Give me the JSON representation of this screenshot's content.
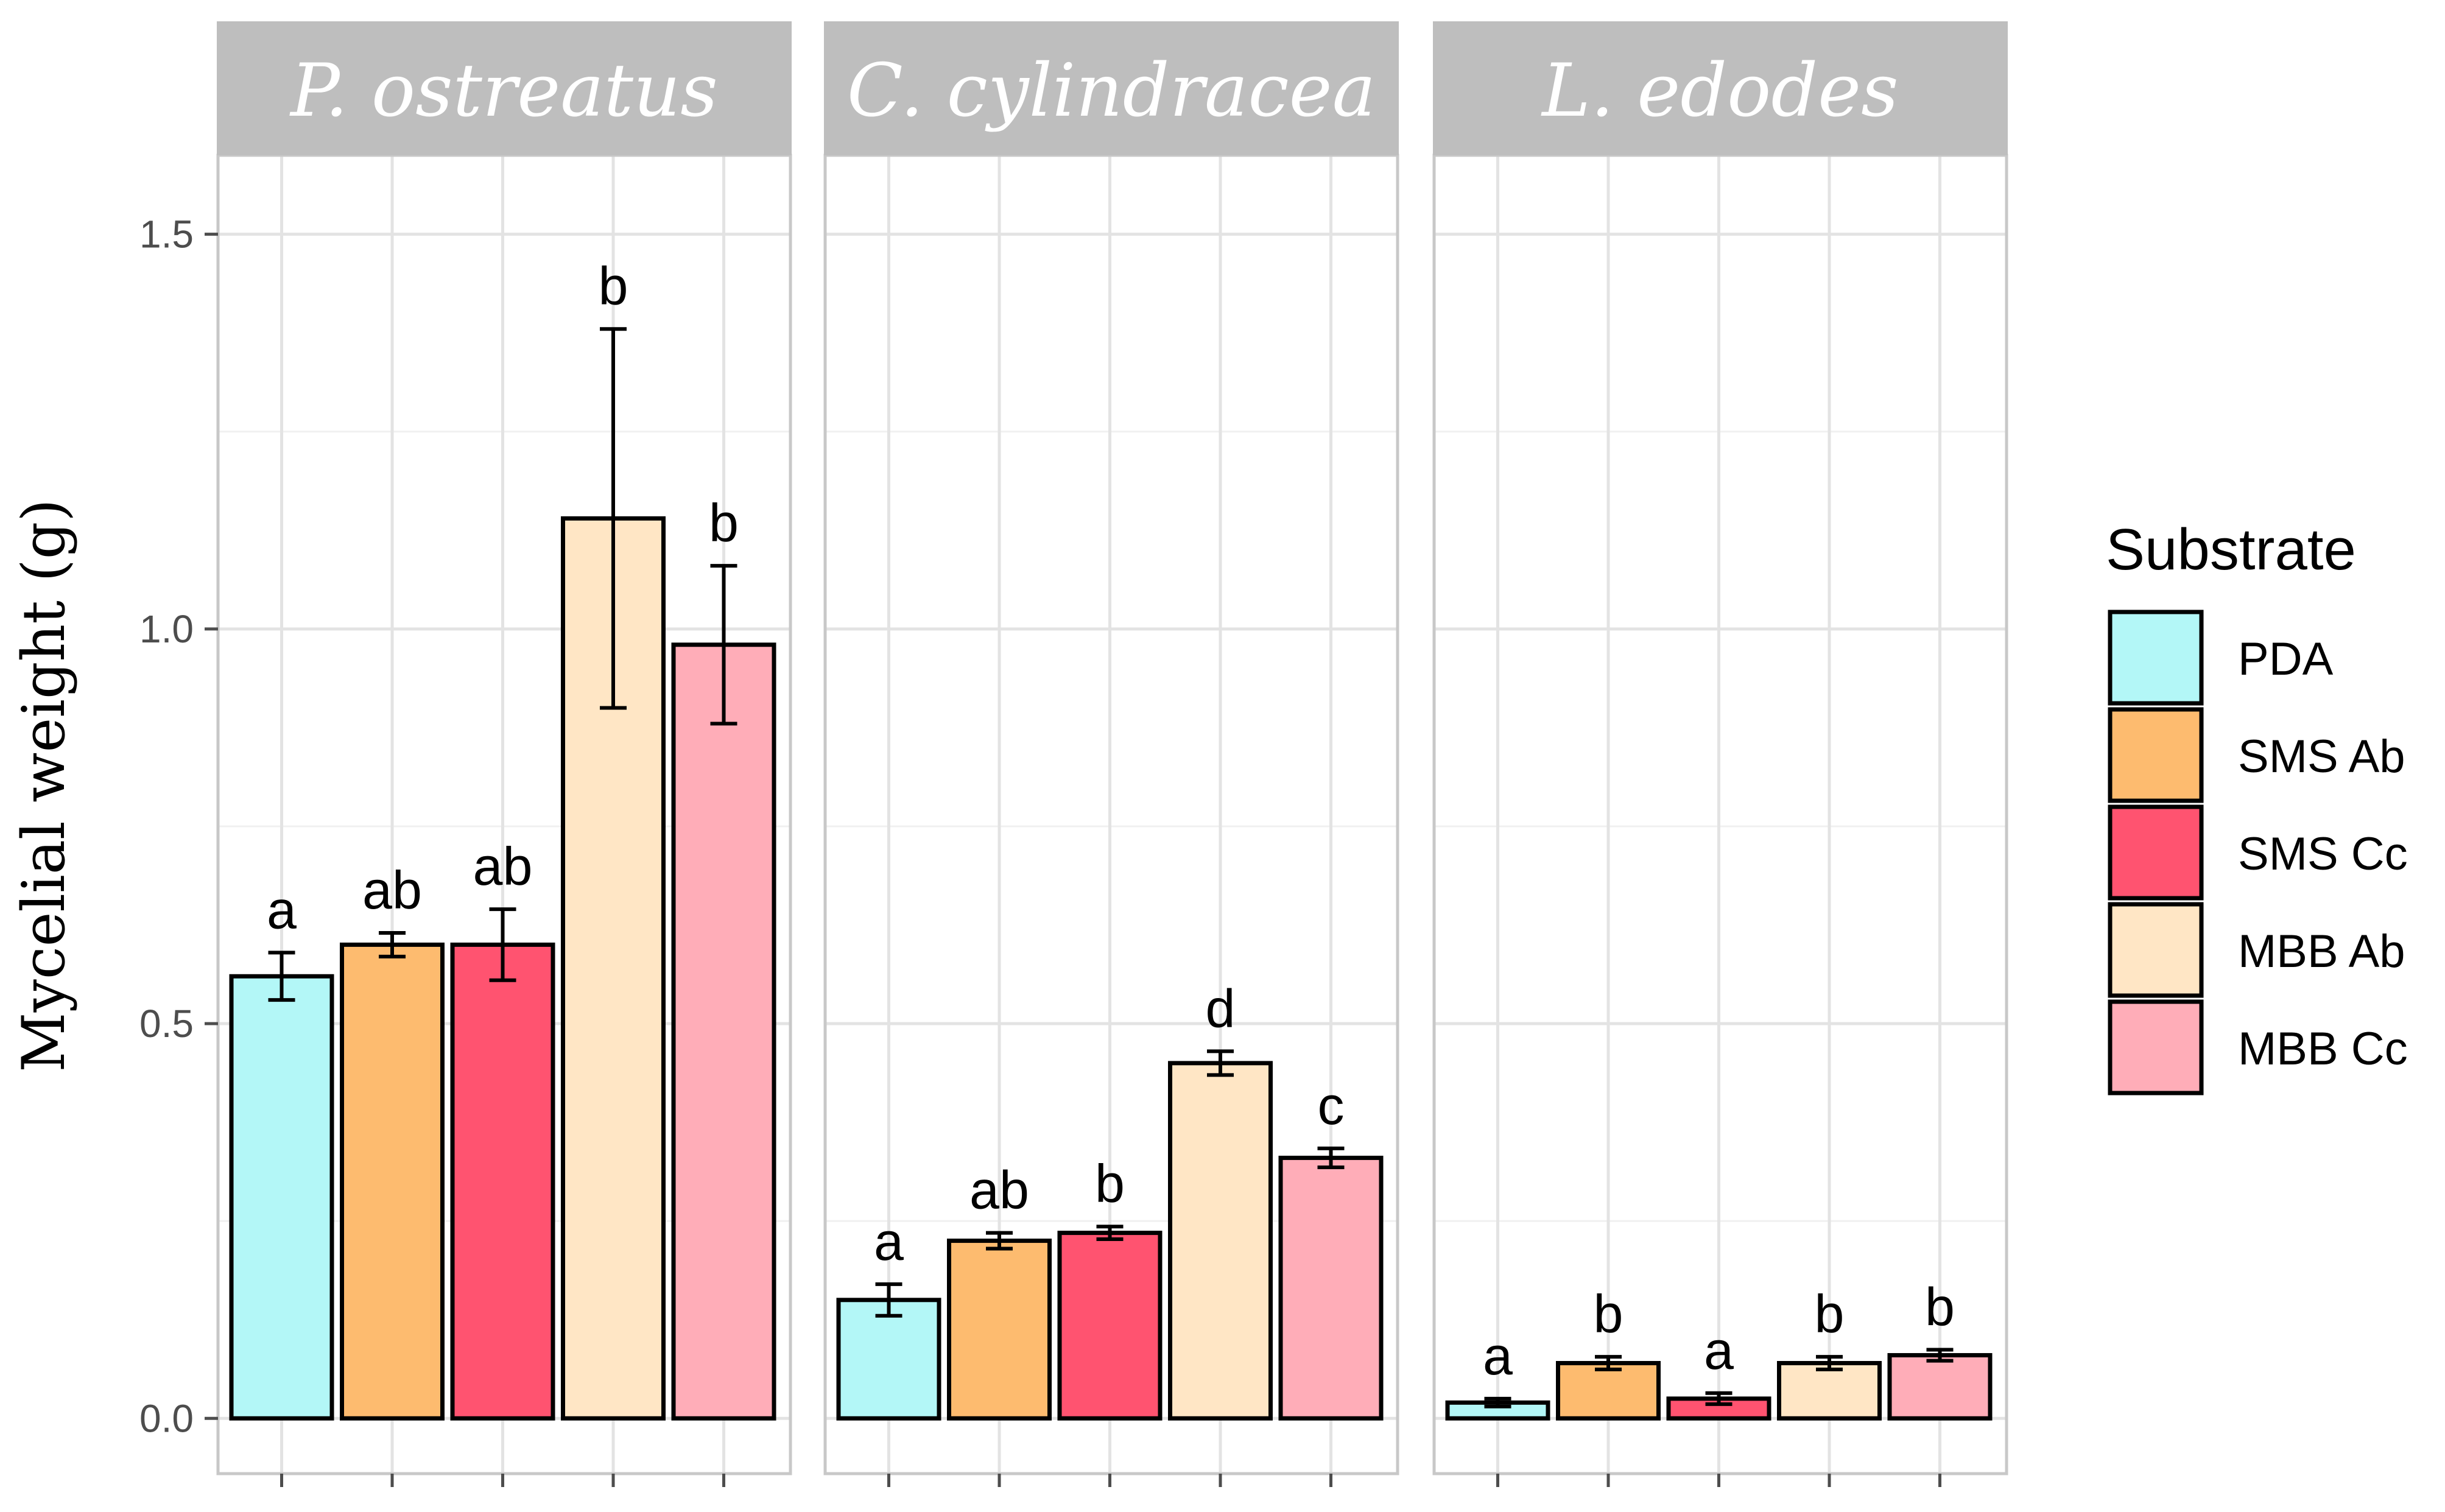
{
  "chart_data": {
    "type": "bar",
    "ylabel": "Mycelial weight  (g)",
    "xlabel": "",
    "ylim": [
      -0.07,
      1.6
    ],
    "y_ticks": [
      {
        "value": 0.0,
        "label": "0.0"
      },
      {
        "value": 0.5,
        "label": "0.5"
      },
      {
        "value": 1.0,
        "label": "1.0"
      },
      {
        "value": 1.5,
        "label": "1.5"
      }
    ],
    "y_minor_ticks": [
      0.25,
      0.75,
      1.25
    ],
    "grid": true,
    "facets": [
      {
        "title": "P. ostreatus",
        "values": [
          0.56,
          0.6,
          0.6,
          1.14,
          0.98
        ],
        "errors": [
          0.03,
          0.015,
          0.045,
          0.24,
          0.1
        ],
        "letters": [
          "a",
          "ab",
          "ab",
          "b",
          "b"
        ]
      },
      {
        "title": "C. cylindracea",
        "values": [
          0.15,
          0.225,
          0.235,
          0.45,
          0.33
        ],
        "errors": [
          0.02,
          0.01,
          0.008,
          0.015,
          0.012
        ],
        "letters": [
          "a",
          "ab",
          "b",
          "d",
          "c"
        ]
      },
      {
        "title": "L. edodes",
        "values": [
          0.02,
          0.07,
          0.025,
          0.07,
          0.08
        ],
        "errors": [
          0.005,
          0.008,
          0.007,
          0.008,
          0.007
        ],
        "letters": [
          "a",
          "b",
          "a",
          "b",
          "b"
        ]
      }
    ],
    "legend": {
      "title": "Substrate",
      "position": "right",
      "entries": [
        {
          "label": "PDA",
          "color": "#b3f7f7"
        },
        {
          "label": "SMS Ab",
          "color": "#fdbb6f"
        },
        {
          "label": "SMS Cc",
          "color": "#ff5370"
        },
        {
          "label": "MBB Ab",
          "color": "#ffe6c5"
        },
        {
          "label": "MBB Cc",
          "color": "#ffadb8"
        }
      ]
    }
  }
}
